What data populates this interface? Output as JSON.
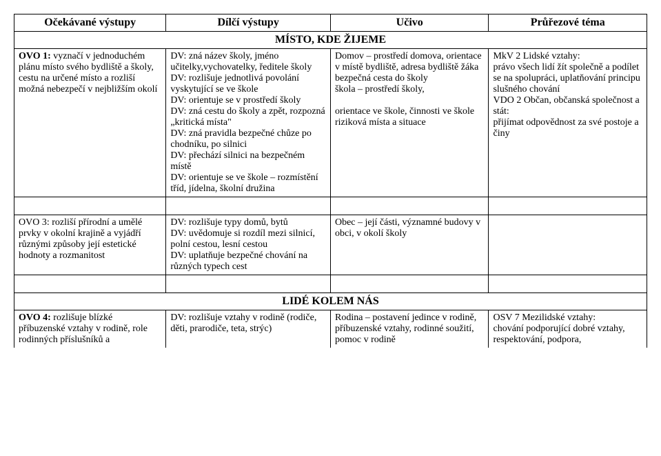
{
  "headers": {
    "h1": "Očekávané výstupy",
    "h2": "Dílčí výstupy",
    "h3": "Učivo",
    "h4": "Průřezové téma"
  },
  "section1": {
    "title": "MÍSTO, KDE ŽIJEME"
  },
  "row1": {
    "c1a": "OVO 1:",
    "c1b": " vyznačí v jednoduchém plánu místo svého bydliště a školy, cestu na určené místo a rozliší možná nebezpečí v nejbližším okolí",
    "c2": "DV: zná název školy, jméno učitelky,vychovatelky, ředitele školy\nDV: rozlišuje jednotlivá povolání vyskytující se ve škole\nDV: orientuje se v prostředí školy\nDV: zná cestu do školy a zpět, rozpozná „kritická místa\"\nDV: zná pravidla bezpečné chůze po chodníku, po silnici\nDV: přechází silnici na bezpečném místě\nDV: orientuje se ve škole – rozmístění tříd, jídelna, školní družina",
    "c3": "Domov – prostředí domova, orientace v místě bydliště, adresa bydliště žáka\nbezpečná cesta do školy\nškola – prostředí školy,\n\norientace ve škole, činnosti ve škole\nriziková místa a situace",
    "c4": "MkV 2 Lidské vztahy:\nprávo všech lidí žít společně a podílet se na spolupráci, uplatňování principu slušného chování\nVDO 2 Občan, občanská společnost a stát:\npřijímat odpovědnost za své postoje a činy"
  },
  "row2": {
    "c1": "OVO 3: rozliší přírodní a umělé prvky v okolní krajině a vyjádří různými způsoby její estetické hodnoty a rozmanitost",
    "c2": "DV: rozlišuje typy domů, bytů\nDV: uvědomuje si rozdíl mezi silnicí, polní cestou, lesní cestou\nDV: uplatňuje bezpečné chování na různých typech cest",
    "c3": "Obec – její části, významné budovy v obci, v okolí školy",
    "c4": ""
  },
  "section2": {
    "title": "LIDÉ KOLEM NÁS"
  },
  "row3": {
    "c1a": "OVO 4:",
    "c1b": " rozlišuje blízké příbuzenské vztahy v rodině, role rodinných příslušníků a",
    "c2": "DV: rozlišuje vztahy v rodině (rodiče, děti, prarodiče, teta, strýc)",
    "c3": "Rodina – postavení jedince v rodině, příbuzenské vztahy, rodinné soužití, pomoc v rodině",
    "c4": "OSV 7 Mezilidské vztahy:\nchování podporující dobré vztahy, respektování, podpora,"
  }
}
